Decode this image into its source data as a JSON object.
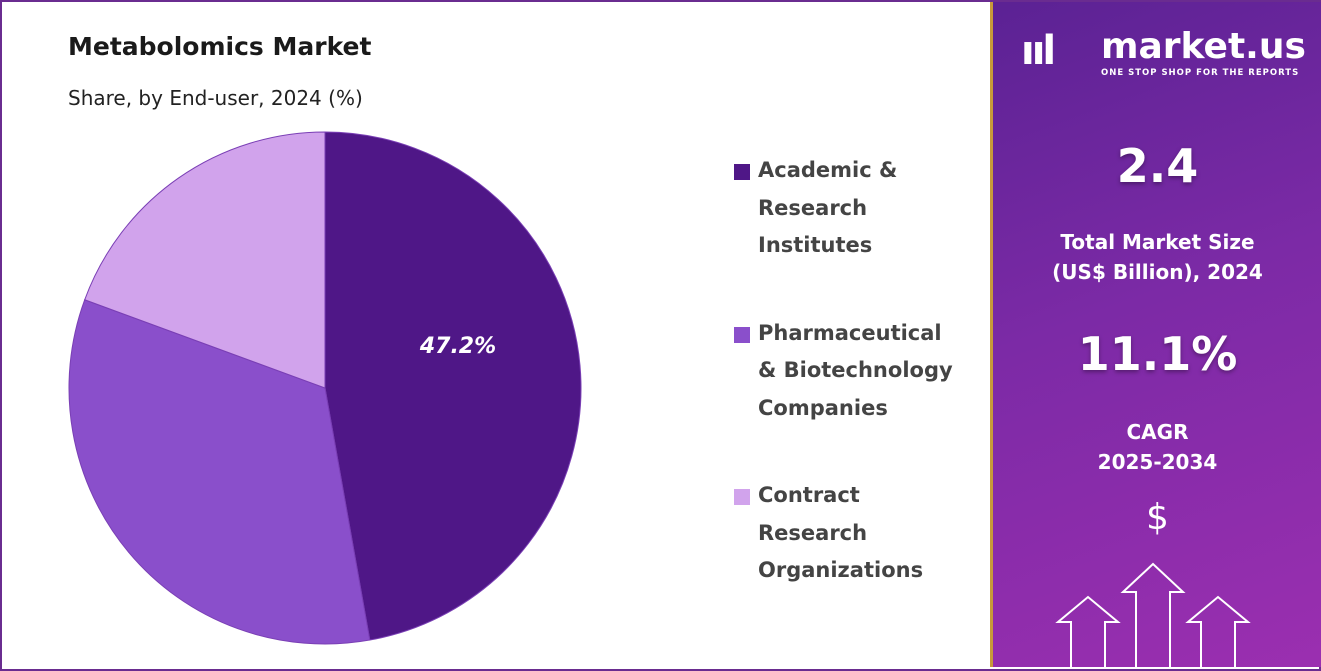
{
  "header": {
    "title": "Metabolomics Market",
    "subtitle": "Share, by End-user, 2024 (%)"
  },
  "chart_data": {
    "type": "pie",
    "title": "Metabolomics Market",
    "subtitle": "Share, by End-user, 2024 (%)",
    "categories": [
      "Academic & Research Institutes",
      "Pharmaceutical & Biotechnology Companies",
      "Contract Research Organizations"
    ],
    "legend_lines": [
      [
        "Academic &",
        "Research",
        "Institutes"
      ],
      [
        "Pharmaceutical",
        "& Biotechnology",
        "Companies"
      ],
      [
        "Contract",
        "Research",
        "Organizations"
      ]
    ],
    "values": [
      47.2,
      33.4,
      19.4
    ],
    "colors": [
      "#4f1787",
      "#8a4fcb",
      "#d1a3ec"
    ],
    "data_labels": [
      "47.2%",
      "",
      ""
    ],
    "legend_position": "right"
  },
  "panel": {
    "logo_mark": "ııl",
    "logo_name": "market.us",
    "logo_tagline": "ONE STOP SHOP FOR THE REPORTS",
    "market_size": "2.4",
    "market_size_label_1": "Total Market Size",
    "market_size_label_2": "(US$ Billion), 2024",
    "cagr": "11.1%",
    "cagr_label_1": "CAGR",
    "cagr_label_2": "2025-2034",
    "dollar_sign": "$"
  }
}
